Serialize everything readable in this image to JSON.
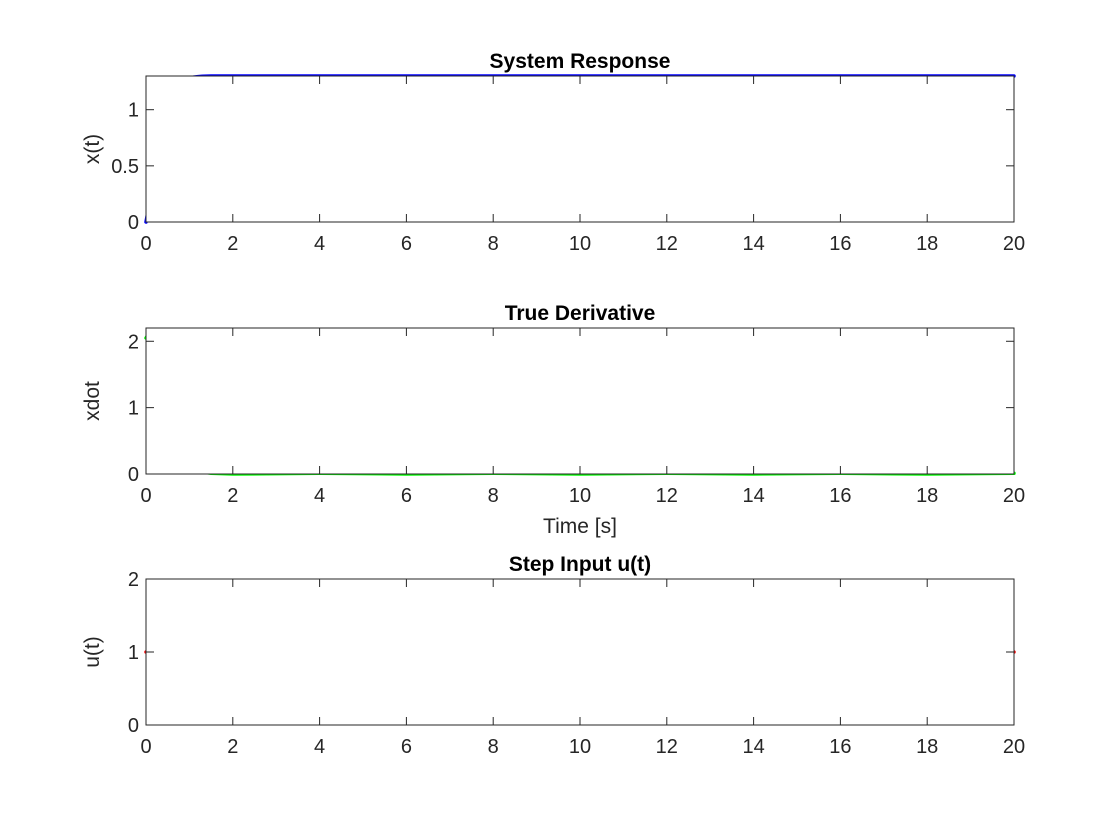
{
  "chart_data": [
    {
      "type": "line",
      "title": "System Response",
      "xlabel": "",
      "ylabel": "x(t)",
      "xlim": [
        0,
        20
      ],
      "ylim": [
        0,
        1.3
      ],
      "xticks": [
        0,
        2,
        4,
        6,
        8,
        10,
        12,
        14,
        16,
        18,
        20
      ],
      "yticks": [
        0,
        0.5,
        1
      ],
      "grid": true,
      "series": [
        {
          "color": "#0000ff",
          "x": [
            0,
            0.1,
            0.2,
            0.3,
            0.4,
            0.5,
            0.6,
            0.7,
            0.8,
            0.9,
            1.0,
            1.1,
            1.2,
            1.3,
            1.5,
            2,
            4,
            6,
            8,
            10,
            12,
            14,
            16,
            18,
            20
          ],
          "y": [
            0,
            0.21,
            0.43,
            0.63,
            0.81,
            0.96,
            1.07,
            1.16,
            1.22,
            1.26,
            1.28,
            1.29,
            1.295,
            1.298,
            1.3,
            1.3,
            1.3,
            1.3,
            1.3,
            1.3,
            1.3,
            1.3,
            1.3,
            1.3,
            1.3
          ]
        }
      ]
    },
    {
      "type": "line",
      "title": "True Derivative",
      "xlabel": "Time [s]",
      "ylabel": "xdot",
      "xlim": [
        0,
        20
      ],
      "ylim": [
        0,
        2.2
      ],
      "xticks": [
        0,
        2,
        4,
        6,
        8,
        10,
        12,
        14,
        16,
        18,
        20
      ],
      "yticks": [
        0,
        1,
        2
      ],
      "grid": true,
      "series": [
        {
          "color": "#00ff00",
          "x": [
            0,
            0.1,
            0.2,
            0.3,
            0.4,
            0.5,
            0.6,
            0.7,
            0.8,
            0.9,
            1.0,
            1.1,
            1.2,
            1.3,
            1.5,
            2,
            4,
            6,
            8,
            10,
            12,
            14,
            16,
            18,
            20
          ],
          "y": [
            2.05,
            2.15,
            2.15,
            2.0,
            1.7,
            1.35,
            1.0,
            0.7,
            0.45,
            0.28,
            0.16,
            0.09,
            0.05,
            0.03,
            0.01,
            0,
            0.01,
            0,
            0.01,
            0,
            0.01,
            0,
            0.01,
            0,
            0.01
          ]
        }
      ]
    },
    {
      "type": "line",
      "title": "Step Input u(t)",
      "xlabel": "",
      "ylabel": "u(t)",
      "xlim": [
        0,
        20
      ],
      "ylim": [
        0,
        2
      ],
      "xticks": [
        0,
        2,
        4,
        6,
        8,
        10,
        12,
        14,
        16,
        18,
        20
      ],
      "yticks": [
        0,
        1,
        2
      ],
      "grid": true,
      "series": [
        {
          "color": "#ff0000",
          "x": [
            0,
            20
          ],
          "y": [
            1,
            1
          ]
        }
      ]
    }
  ]
}
